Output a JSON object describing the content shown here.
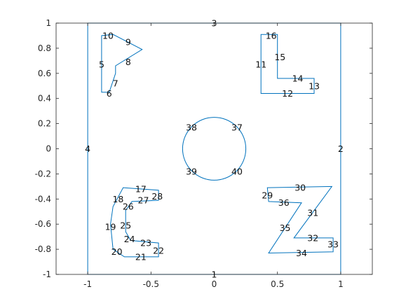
{
  "chart_data": {
    "type": "diagram",
    "title": "",
    "xlabel": "",
    "ylabel": "",
    "xlim": [
      -1.25,
      1.25
    ],
    "ylim": [
      -1,
      1
    ],
    "x_ticks": [
      "-1",
      "-0.5",
      "0",
      "0.5",
      "1"
    ],
    "x_tick_values": [
      -1,
      -0.5,
      0,
      0.5,
      1
    ],
    "y_ticks": [
      "1",
      "0.8",
      "0.6",
      "0.4",
      "0.2",
      "0",
      "-0.2",
      "-0.4",
      "-0.6",
      "-0.8",
      "-1"
    ],
    "y_tick_values": [
      1,
      0.8,
      0.6,
      0.4,
      0.2,
      0,
      -0.2,
      -0.4,
      -0.6,
      -0.8,
      -1
    ],
    "line_color": "#0072BD",
    "rectangle": [
      [
        -1,
        -1
      ],
      [
        1,
        -1
      ],
      [
        1,
        1
      ],
      [
        -1,
        1
      ]
    ],
    "shapes": [
      {
        "name": "P",
        "points": [
          [
            -0.89,
            0.9
          ],
          [
            -0.8,
            0.91
          ],
          [
            -0.57,
            0.79
          ],
          [
            -0.78,
            0.66
          ],
          [
            -0.78,
            0.6
          ],
          [
            -0.83,
            0.45
          ],
          [
            -0.89,
            0.45
          ]
        ]
      },
      {
        "name": "L",
        "points": [
          [
            0.37,
            0.91
          ],
          [
            0.5,
            0.91
          ],
          [
            0.5,
            0.56
          ],
          [
            0.79,
            0.56
          ],
          [
            0.79,
            0.44
          ],
          [
            0.37,
            0.44
          ]
        ]
      },
      {
        "name": "C",
        "points": [
          [
            -0.72,
            -0.31
          ],
          [
            -0.44,
            -0.33
          ],
          [
            -0.44,
            -0.41
          ],
          [
            -0.65,
            -0.42
          ],
          [
            -0.7,
            -0.49
          ],
          [
            -0.7,
            -0.66
          ],
          [
            -0.66,
            -0.73
          ],
          [
            -0.44,
            -0.75
          ],
          [
            -0.44,
            -0.86
          ],
          [
            -0.71,
            -0.86
          ],
          [
            -0.8,
            -0.8
          ],
          [
            -0.82,
            -0.6
          ],
          [
            -0.8,
            -0.46
          ]
        ]
      },
      {
        "name": "Z",
        "points": [
          [
            0.42,
            -0.31
          ],
          [
            0.93,
            -0.3
          ],
          [
            0.63,
            -0.71
          ],
          [
            0.94,
            -0.71
          ],
          [
            0.94,
            -0.82
          ],
          [
            0.43,
            -0.83
          ],
          [
            0.69,
            -0.43
          ],
          [
            0.43,
            -0.42
          ]
        ]
      }
    ],
    "circle": {
      "cx": 0,
      "cy": 0,
      "r": 0.25
    },
    "edge_labels": [
      {
        "text": "1",
        "x": 0,
        "y": -1
      },
      {
        "text": "2",
        "x": 1,
        "y": 0
      },
      {
        "text": "3",
        "x": 0,
        "y": 1
      },
      {
        "text": "4",
        "x": -1,
        "y": 0
      },
      {
        "text": "5",
        "x": -0.89,
        "y": 0.67
      },
      {
        "text": "6",
        "x": -0.83,
        "y": 0.44
      },
      {
        "text": "7",
        "x": -0.78,
        "y": 0.52
      },
      {
        "text": "8",
        "x": -0.68,
        "y": 0.69
      },
      {
        "text": "9",
        "x": -0.68,
        "y": 0.85
      },
      {
        "text": "10",
        "x": -0.84,
        "y": 0.9
      },
      {
        "text": "11",
        "x": 0.37,
        "y": 0.67
      },
      {
        "text": "12",
        "x": 0.58,
        "y": 0.44
      },
      {
        "text": "13",
        "x": 0.79,
        "y": 0.5
      },
      {
        "text": "14",
        "x": 0.66,
        "y": 0.56
      },
      {
        "text": "15",
        "x": 0.52,
        "y": 0.73
      },
      {
        "text": "16",
        "x": 0.45,
        "y": 0.9
      },
      {
        "text": "17",
        "x": -0.58,
        "y": -0.32
      },
      {
        "text": "18",
        "x": -0.76,
        "y": -0.4
      },
      {
        "text": "19",
        "x": -0.82,
        "y": -0.62
      },
      {
        "text": "20",
        "x": -0.77,
        "y": -0.82
      },
      {
        "text": "21",
        "x": -0.58,
        "y": -0.86
      },
      {
        "text": "22",
        "x": -0.44,
        "y": -0.81
      },
      {
        "text": "23",
        "x": -0.54,
        "y": -0.75
      },
      {
        "text": "24",
        "x": -0.67,
        "y": -0.72
      },
      {
        "text": "25",
        "x": -0.7,
        "y": -0.61
      },
      {
        "text": "26",
        "x": -0.68,
        "y": -0.46
      },
      {
        "text": "27",
        "x": -0.56,
        "y": -0.41
      },
      {
        "text": "28",
        "x": -0.45,
        "y": -0.38
      },
      {
        "text": "29",
        "x": 0.42,
        "y": -0.37
      },
      {
        "text": "30",
        "x": 0.68,
        "y": -0.31
      },
      {
        "text": "31",
        "x": 0.78,
        "y": -0.51
      },
      {
        "text": "32",
        "x": 0.78,
        "y": -0.71
      },
      {
        "text": "33",
        "x": 0.94,
        "y": -0.76
      },
      {
        "text": "34",
        "x": 0.69,
        "y": -0.83
      },
      {
        "text": "35",
        "x": 0.56,
        "y": -0.63
      },
      {
        "text": "36",
        "x": 0.55,
        "y": -0.43
      },
      {
        "text": "37",
        "x": 0.18,
        "y": 0.17
      },
      {
        "text": "38",
        "x": -0.18,
        "y": 0.17
      },
      {
        "text": "39",
        "x": -0.18,
        "y": -0.18
      },
      {
        "text": "40",
        "x": 0.18,
        "y": -0.18
      }
    ]
  }
}
